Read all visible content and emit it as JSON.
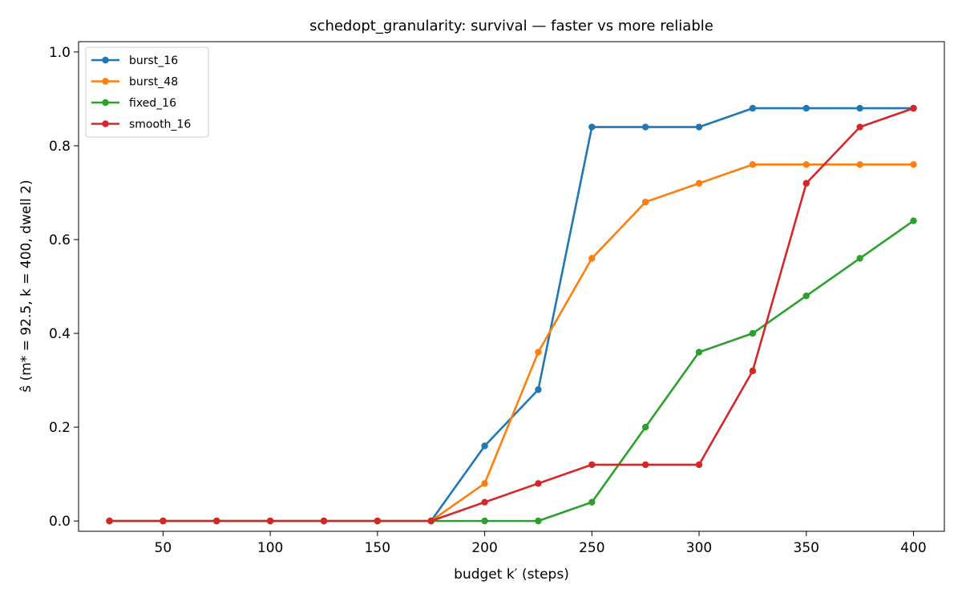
{
  "chart_data": {
    "type": "line",
    "title": "schedopt_granularity: survival — faster vs more reliable",
    "xlabel": "budget k′ (steps)",
    "ylabel": "ŝ (m* = 92.5, k = 400, dwell 2)",
    "xlim": [
      10.6,
      414.4
    ],
    "ylim": [
      -0.022,
      1.022
    ],
    "xticks": [
      50,
      100,
      150,
      200,
      250,
      300,
      350,
      400
    ],
    "yticks": [
      0.0,
      0.2,
      0.4,
      0.6,
      0.8,
      1.0
    ],
    "ytick_labels": [
      "0.0",
      "0.2",
      "0.4",
      "0.6",
      "0.8",
      "1.0"
    ],
    "grid": false,
    "legend_position": "top-left",
    "x": [
      25,
      50,
      75,
      100,
      125,
      150,
      175,
      200,
      225,
      250,
      275,
      300,
      325,
      350,
      375,
      400
    ],
    "series": [
      {
        "name": "burst_16",
        "color": "#1f77b4",
        "values": [
          0,
          0,
          0,
          0,
          0,
          0,
          0,
          0.16,
          0.28,
          0.84,
          0.84,
          0.84,
          0.88,
          0.88,
          0.88,
          0.88
        ]
      },
      {
        "name": "burst_48",
        "color": "#ff7f0e",
        "values": [
          0,
          0,
          0,
          0,
          0,
          0,
          0,
          0.08,
          0.36,
          0.56,
          0.68,
          0.72,
          0.76,
          0.76,
          0.76,
          0.76
        ]
      },
      {
        "name": "fixed_16",
        "color": "#2ca02c",
        "values": [
          0,
          0,
          0,
          0,
          0,
          0,
          0,
          0,
          0,
          0.04,
          0.2,
          0.36,
          0.4,
          0.48,
          0.56,
          0.64
        ]
      },
      {
        "name": "smooth_16",
        "color": "#d62728",
        "values": [
          0,
          0,
          0,
          0,
          0,
          0,
          0,
          0.04,
          0.08,
          0.12,
          0.12,
          0.12,
          0.32,
          0.72,
          0.84,
          0.88
        ]
      }
    ]
  }
}
